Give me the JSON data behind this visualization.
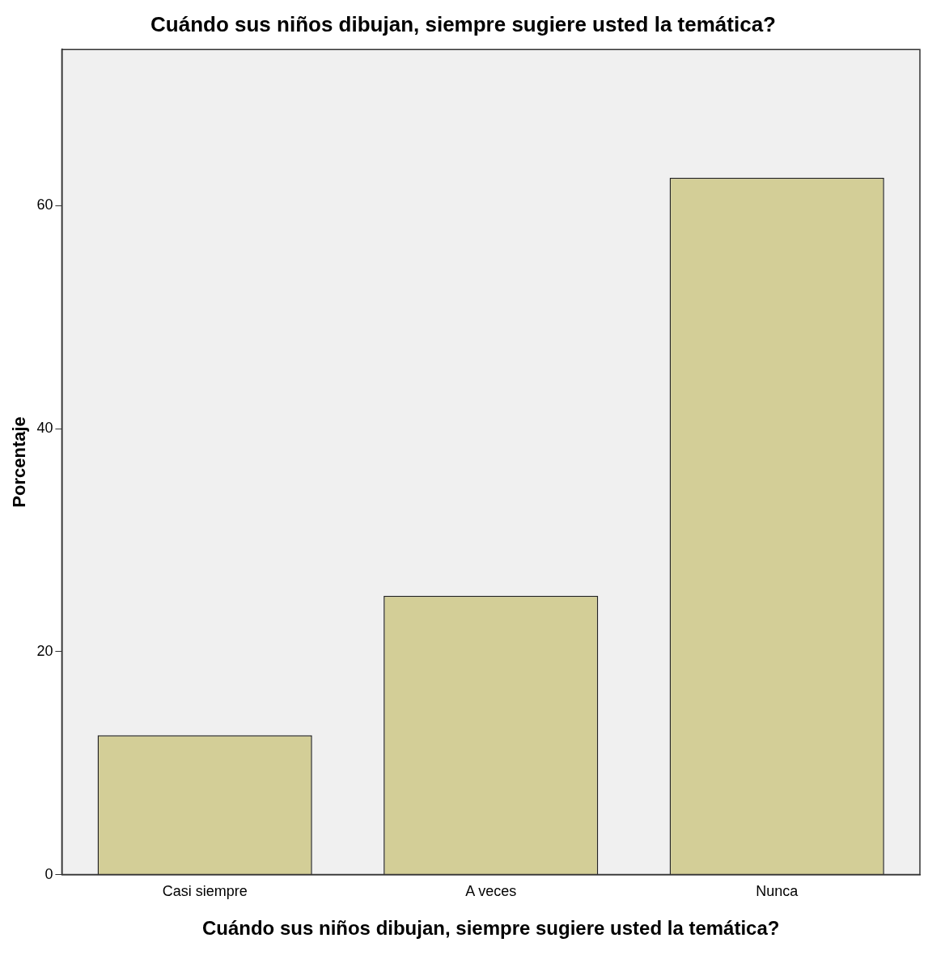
{
  "chart_data": {
    "type": "bar",
    "title": "Cuándo sus niños dibujan, siempre sugiere usted la temática?",
    "xlabel": "Cuándo sus niños dibujan, siempre sugiere usted la temática?",
    "ylabel": "Porcentaje",
    "categories": [
      "Casi siempre",
      "A veces",
      "Nunca"
    ],
    "values": [
      12.5,
      25,
      62.5
    ],
    "color": "#d3ce97",
    "ylim": [
      0,
      74
    ],
    "yticks": [
      0,
      20,
      40,
      60
    ],
    "grid": false,
    "legend": false
  }
}
